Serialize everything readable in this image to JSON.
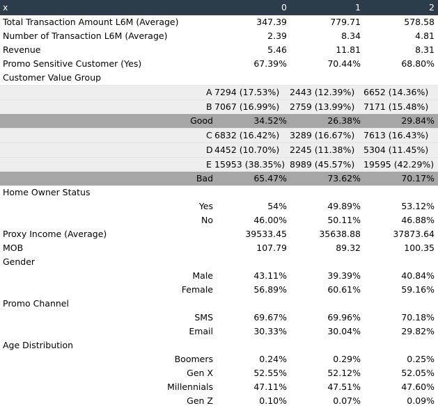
{
  "header": {
    "index": "x",
    "cols": [
      "0",
      "1",
      "2"
    ]
  },
  "rows": [
    {
      "type": "metric",
      "label": "Total Transaction Amount L6M (Average)",
      "v": [
        "347.39",
        "779.71",
        "578.58"
      ]
    },
    {
      "type": "metric",
      "label": "Number of Transaction L6M (Average)",
      "v": [
        "2.39",
        "8.34",
        "4.81"
      ]
    },
    {
      "type": "metric",
      "label": "Revenue",
      "v": [
        "5.46",
        "11.81",
        "8.31"
      ]
    },
    {
      "type": "metric",
      "label": "Promo Sensitive Customer (Yes)",
      "v": [
        "67.39%",
        "70.44%",
        "68.80%"
      ]
    },
    {
      "type": "section",
      "label": "Customer Value Group"
    },
    {
      "type": "group",
      "key": "A",
      "v": [
        "7294 (17.53%)",
        "2443 (12.39%)",
        "6652 (14.36%)"
      ]
    },
    {
      "type": "group",
      "key": "B",
      "v": [
        "7067 (16.99%)",
        "2759 (13.99%)",
        "7171 (15.48%)"
      ]
    },
    {
      "type": "band",
      "key": "Good",
      "v": [
        "34.52%",
        "26.38%",
        "29.84%"
      ]
    },
    {
      "type": "group",
      "key": "C",
      "v": [
        "6832 (16.42%)",
        "3289 (16.67%)",
        "7613 (16.43%)"
      ]
    },
    {
      "type": "group",
      "key": "D",
      "v": [
        "4452 (10.70%)",
        "2245 (11.38%)",
        "5304 (11.45%)"
      ]
    },
    {
      "type": "group",
      "key": "E",
      "v": [
        "15953 (38.35%)",
        "8989 (45.57%)",
        "19595 (42.29%)"
      ]
    },
    {
      "type": "band",
      "key": "Bad",
      "v": [
        "65.47%",
        "73.62%",
        "70.17%"
      ]
    },
    {
      "type": "section",
      "label": "Home Owner Status"
    },
    {
      "type": "sub",
      "key": "Yes",
      "v": [
        "54%",
        "49.89%",
        "53.12%"
      ]
    },
    {
      "type": "sub",
      "key": "No",
      "v": [
        "46.00%",
        "50.11%",
        "46.88%"
      ]
    },
    {
      "type": "metric",
      "label": "Proxy Income (Average)",
      "v": [
        "39533.45",
        "35638.88",
        "37873.64"
      ]
    },
    {
      "type": "metric",
      "label": "MOB",
      "v": [
        "107.79",
        "89.32",
        "100.35"
      ]
    },
    {
      "type": "section",
      "label": "Gender"
    },
    {
      "type": "sub",
      "key": "Male",
      "v": [
        "43.11%",
        "39.39%",
        "40.84%"
      ]
    },
    {
      "type": "sub",
      "key": "Female",
      "v": [
        "56.89%",
        "60.61%",
        "59.16%"
      ]
    },
    {
      "type": "section",
      "label": "Promo Channel"
    },
    {
      "type": "sub",
      "key": "SMS",
      "v": [
        "69.67%",
        "69.96%",
        "70.18%"
      ]
    },
    {
      "type": "sub",
      "key": "Email",
      "v": [
        "30.33%",
        "30.04%",
        "29.82%"
      ]
    },
    {
      "type": "section",
      "label": "Age Distribution"
    },
    {
      "type": "sub",
      "key": "Boomers",
      "v": [
        "0.24%",
        "0.29%",
        "0.25%"
      ]
    },
    {
      "type": "sub",
      "key": "Gen X",
      "v": [
        "52.55%",
        "52.12%",
        "52.05%"
      ]
    },
    {
      "type": "sub",
      "key": "Millennials",
      "v": [
        "47.11%",
        "47.51%",
        "47.60%"
      ]
    },
    {
      "type": "sub",
      "key": "Gen Z",
      "v": [
        "0.10%",
        "0.07%",
        "0.09%"
      ]
    }
  ]
}
